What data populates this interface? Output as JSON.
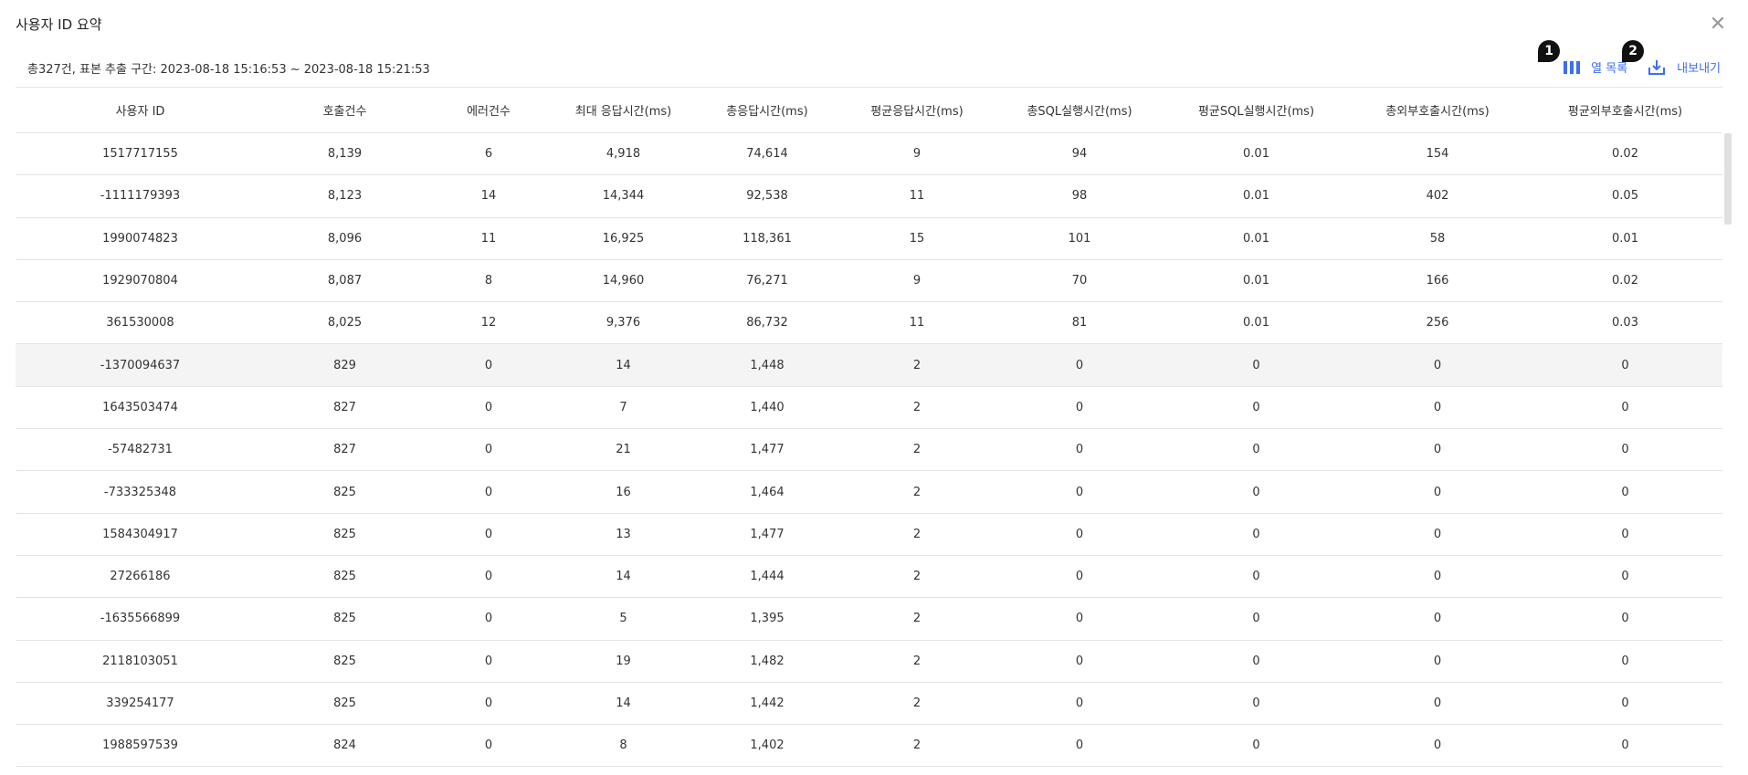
{
  "dialog": {
    "title": "사용자 ID 요약",
    "summary": "총327건, 표본 추출 구간: 2023-08-18 15:16:53 ~ 2023-08-18 15:21:53"
  },
  "toolbar": {
    "columns": {
      "badge": "1",
      "label": "열 목록",
      "icon": "columns-icon"
    },
    "export": {
      "badge": "2",
      "label": "내보내기",
      "icon": "download-icon"
    },
    "accent": "#3b6ef5"
  },
  "table": {
    "headers": [
      "사용자 ID",
      "호출건수",
      "에러건수",
      "최대 응답시간(ms)",
      "총응답시간(ms)",
      "평균응답시간(ms)",
      "총SQL실행시간(ms)",
      "평균SQL실행시간(ms)",
      "총외부호출시간(ms)",
      "평균외부호출시간(ms)"
    ],
    "rows": [
      [
        "1517717155",
        "8,139",
        "6",
        "4,918",
        "74,614",
        "9",
        "94",
        "0.01",
        "154",
        "0.02"
      ],
      [
        "-1111179393",
        "8,123",
        "14",
        "14,344",
        "92,538",
        "11",
        "98",
        "0.01",
        "402",
        "0.05"
      ],
      [
        "1990074823",
        "8,096",
        "11",
        "16,925",
        "118,361",
        "15",
        "101",
        "0.01",
        "58",
        "0.01"
      ],
      [
        "1929070804",
        "8,087",
        "8",
        "14,960",
        "76,271",
        "9",
        "70",
        "0.01",
        "166",
        "0.02"
      ],
      [
        "361530008",
        "8,025",
        "12",
        "9,376",
        "86,732",
        "11",
        "81",
        "0.01",
        "256",
        "0.03"
      ],
      [
        "-1370094637",
        "829",
        "0",
        "14",
        "1,448",
        "2",
        "0",
        "0",
        "0",
        "0"
      ],
      [
        "1643503474",
        "827",
        "0",
        "7",
        "1,440",
        "2",
        "0",
        "0",
        "0",
        "0"
      ],
      [
        "-57482731",
        "827",
        "0",
        "21",
        "1,477",
        "2",
        "0",
        "0",
        "0",
        "0"
      ],
      [
        "-733325348",
        "825",
        "0",
        "16",
        "1,464",
        "2",
        "0",
        "0",
        "0",
        "0"
      ],
      [
        "1584304917",
        "825",
        "0",
        "13",
        "1,477",
        "2",
        "0",
        "0",
        "0",
        "0"
      ],
      [
        "27266186",
        "825",
        "0",
        "14",
        "1,444",
        "2",
        "0",
        "0",
        "0",
        "0"
      ],
      [
        "-1635566899",
        "825",
        "0",
        "5",
        "1,395",
        "2",
        "0",
        "0",
        "0",
        "0"
      ],
      [
        "2118103051",
        "825",
        "0",
        "19",
        "1,482",
        "2",
        "0",
        "0",
        "0",
        "0"
      ],
      [
        "339254177",
        "825",
        "0",
        "14",
        "1,442",
        "2",
        "0",
        "0",
        "0",
        "0"
      ],
      [
        "1988597539",
        "824",
        "0",
        "8",
        "1,402",
        "2",
        "0",
        "0",
        "0",
        "0"
      ]
    ]
  }
}
